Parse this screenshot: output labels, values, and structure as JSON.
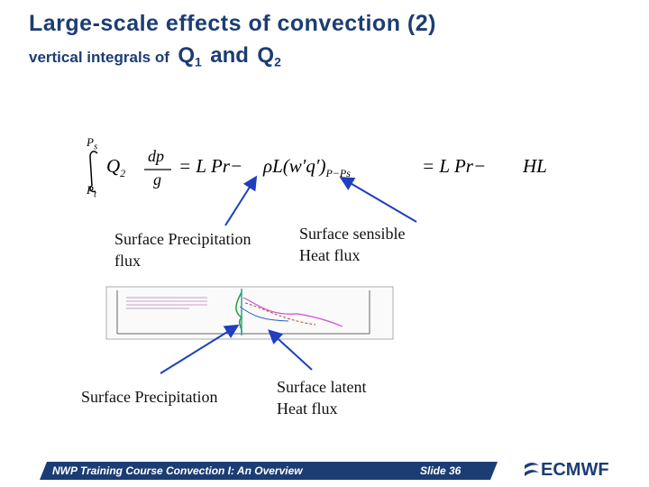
{
  "header": {
    "title": "Large-scale effects of convection (2)",
    "subtitle": {
      "text": "vertical integrals of",
      "q1": "Q",
      "q1_sub": "1",
      "and": "and",
      "q2": "Q",
      "q2_sub": "2"
    }
  },
  "equation": {
    "upper": "P",
    "upper_sub": "s",
    "lower": "P",
    "lower_sub": "t",
    "q": "Q",
    "q_sub": "2",
    "num": "dp",
    "den": "g",
    "eq1": "= L Pr−",
    "flux": "ρL(w′q′)",
    "flux_sub": "P−Ps",
    "eq2": "= L Pr−",
    "hl": "HL"
  },
  "labels": [
    {
      "lines": [
        "Surface Precipitation",
        "flux"
      ]
    },
    {
      "lines": [
        "Surface sensible",
        "Heat flux"
      ]
    },
    {
      "lines": [
        "Surface Precipitation"
      ]
    },
    {
      "lines": [
        "Surface latent",
        "Heat flux"
      ]
    }
  ],
  "footer": {
    "course": "NWP Training Course Convection I: An Overview",
    "slide": "Slide 36",
    "logo": "ECMWF"
  }
}
